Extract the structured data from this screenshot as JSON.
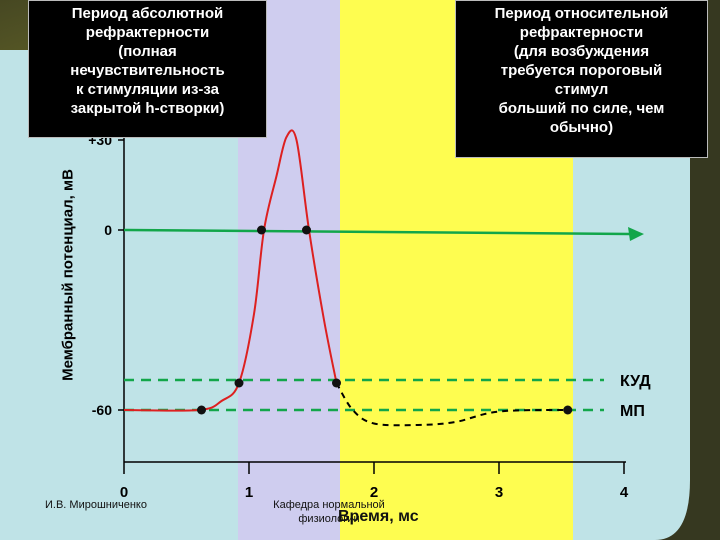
{
  "captions": {
    "absolute": [
      "Период абсолютной",
      "рефрактерности",
      "(полная",
      "нечувствительность",
      "к стимуляции из-за",
      "закрытой h-створки)"
    ],
    "relative": [
      "Период относительной",
      "рефрактерности",
      "(для возбуждения",
      "требуется пороговый",
      "стимул",
      "больший по силе, чем",
      "обычно)"
    ]
  },
  "credits": {
    "author": "И.В. Мирошниченко",
    "department": "Кафедра нормальной физиологии"
  },
  "chart_data": {
    "type": "line",
    "xlabel": "Время, мс",
    "ylabel": "Мембранный потенциал, мВ",
    "x_ticks": [
      "0",
      "1",
      "2",
      "3",
      "4"
    ],
    "y_ticks": [
      "+30",
      "0",
      "-60"
    ],
    "reference_lines": [
      {
        "name": "КУД",
        "y": -50,
        "color": "#12a64a"
      },
      {
        "name": "МП",
        "y": -60,
        "color": "#12a64a"
      },
      {
        "name": "0",
        "y": 0,
        "color": "#12a64a"
      }
    ],
    "regions": [
      {
        "name": "absolute-refractory",
        "x": [
          0.9,
          1.7
        ],
        "color": "#cfcdef"
      },
      {
        "name": "relative-refractory",
        "x": [
          1.7,
          3.55
        ],
        "color": "#fefd50"
      }
    ],
    "action_potential": {
      "color": "#dd2020",
      "points": [
        [
          0.0,
          -60
        ],
        [
          0.6,
          -60
        ],
        [
          0.78,
          -57
        ],
        [
          0.92,
          -51
        ],
        [
          1.04,
          -28
        ],
        [
          1.12,
          0
        ],
        [
          1.22,
          18
        ],
        [
          1.3,
          31
        ],
        [
          1.38,
          30
        ],
        [
          1.48,
          0
        ],
        [
          1.6,
          -30
        ],
        [
          1.7,
          -51
        ]
      ]
    },
    "trace_hyperpolarization": {
      "style": "dashed",
      "color": "#000000",
      "points": [
        [
          1.7,
          -51
        ],
        [
          1.83,
          -60
        ],
        [
          2.0,
          -64.5
        ],
        [
          2.35,
          -65
        ],
        [
          2.65,
          -64
        ],
        [
          3.0,
          -60.5
        ],
        [
          3.55,
          -60
        ]
      ]
    },
    "marked_points": [
      [
        0.62,
        -60
      ],
      [
        0.92,
        -51
      ],
      [
        1.1,
        0
      ],
      [
        1.46,
        0
      ],
      [
        1.7,
        -51
      ],
      [
        3.55,
        -60
      ]
    ]
  }
}
